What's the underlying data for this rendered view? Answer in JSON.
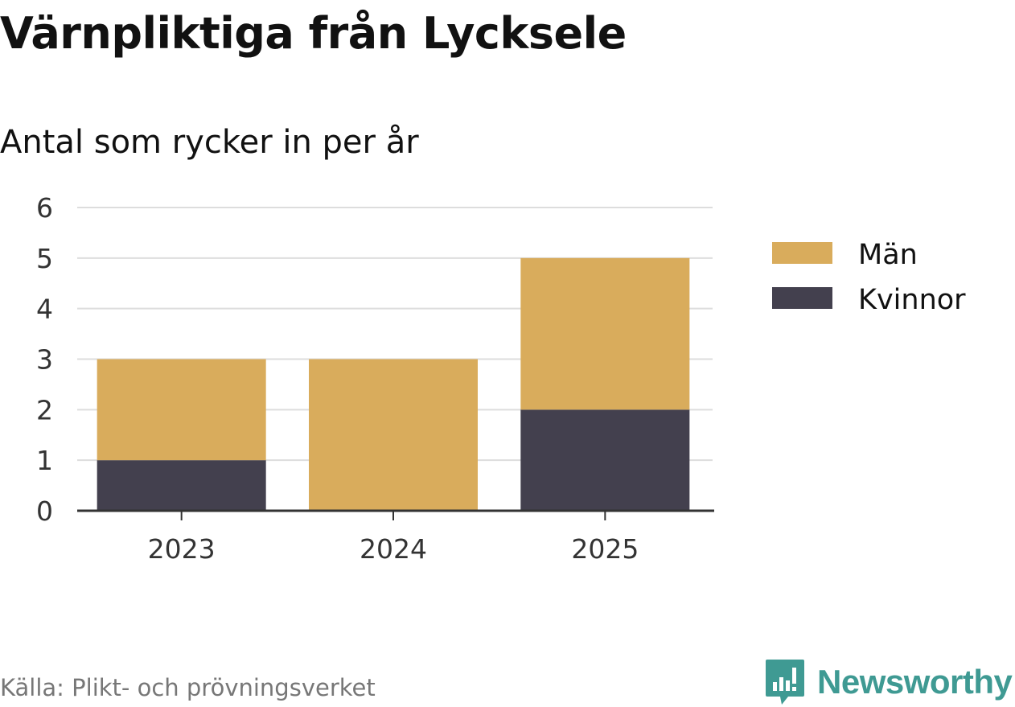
{
  "title": "Värnpliktiga från Lycksele",
  "subtitle": "Antal som rycker in per år",
  "source": "Källa: Plikt- och prövningsverket",
  "brand": "Newsworthy",
  "icons": {
    "brand": "newsworthy-logo-icon"
  },
  "colors": {
    "Män": "#d9ac5c",
    "Kvinnor": "#43404e",
    "grid": "#dddddd",
    "axis": "#333333",
    "brand": "#3f9a93"
  },
  "chart_data": {
    "type": "bar",
    "stacked": true,
    "categories": [
      "2023",
      "2024",
      "2025"
    ],
    "series": [
      {
        "name": "Kvinnor",
        "values": [
          1,
          0,
          2
        ]
      },
      {
        "name": "Män",
        "values": [
          2,
          3,
          3
        ]
      }
    ],
    "ylim": [
      0,
      6
    ],
    "yticks": [
      0,
      1,
      2,
      3,
      4,
      5,
      6
    ],
    "legend_order": [
      "Män",
      "Kvinnor"
    ],
    "legend_position": "right",
    "grid": true
  }
}
